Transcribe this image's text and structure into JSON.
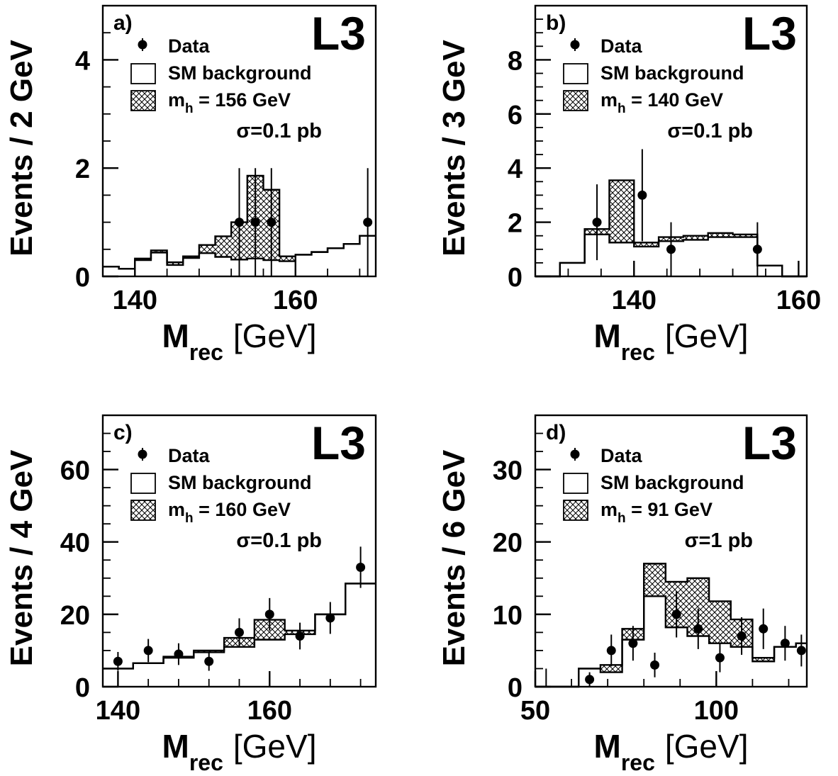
{
  "chart_data": [
    {
      "type": "histogram",
      "panel": "a)",
      "experiment": "L3",
      "ylabel": "Events / 2 GeV",
      "xlabel_main": "M",
      "xlabel_sub": "rec",
      "xlabel_unit": "[GeV]",
      "xlim": [
        136,
        170
      ],
      "ylim": [
        0,
        5
      ],
      "xticks": [
        140,
        160
      ],
      "yticks": [
        0,
        2,
        4
      ],
      "legend": {
        "data": "Data",
        "background": "SM background",
        "signal_prefix": "m",
        "signal_sub": "h",
        "signal_suffix": " = 156 GeV",
        "cross_section": "σ=0.1 pb"
      },
      "bin_edges": [
        136,
        138,
        140,
        142,
        144,
        146,
        148,
        150,
        152,
        154,
        156,
        158,
        160,
        162,
        164,
        166,
        168,
        170
      ],
      "background": [
        0.18,
        0.14,
        0.3,
        0.44,
        0.21,
        0.34,
        0.43,
        0.36,
        0.31,
        0.33,
        0.3,
        0.28,
        0.4,
        0.45,
        0.52,
        0.6,
        0.75
      ],
      "signal_total": [
        0.18,
        0.14,
        0.33,
        0.48,
        0.26,
        0.37,
        0.58,
        0.74,
        1.0,
        1.86,
        1.6,
        0.37,
        0.4,
        0.45,
        0.52,
        0.6,
        0.75
      ],
      "data_points": [
        {
          "x": 153,
          "y": 1,
          "err_low": 1,
          "err_high": 1
        },
        {
          "x": 155,
          "y": 1,
          "err_low": 1,
          "err_high": 1
        },
        {
          "x": 157,
          "y": 1,
          "err_low": 1,
          "err_high": 1
        },
        {
          "x": 169,
          "y": 1,
          "err_low": 1,
          "err_high": 1
        }
      ]
    },
    {
      "type": "histogram",
      "panel": "b)",
      "experiment": "L3",
      "ylabel": "Events / 3 GeV",
      "xlabel_main": "M",
      "xlabel_sub": "rec",
      "xlabel_unit": "[GeV]",
      "xlim": [
        128,
        161
      ],
      "ylim": [
        0,
        10
      ],
      "xticks": [
        140,
        160
      ],
      "yticks": [
        0,
        2,
        4,
        6,
        8
      ],
      "legend": {
        "data": "Data",
        "background": "SM background",
        "signal_prefix": "m",
        "signal_sub": "h",
        "signal_suffix": " = 140 GeV",
        "cross_section": "σ=0.1 pb"
      },
      "bin_edges": [
        128,
        131,
        134,
        137,
        140,
        143,
        146,
        149,
        152,
        155,
        158,
        161
      ],
      "background": [
        0,
        0.5,
        1.55,
        1.25,
        1.1,
        1.3,
        1.35,
        1.45,
        1.45,
        0.4,
        0
      ],
      "signal_total": [
        0,
        0.5,
        1.75,
        3.55,
        1.25,
        1.45,
        1.5,
        1.6,
        1.55,
        0.4,
        0
      ],
      "data_points": [
        {
          "x": 135.5,
          "y": 2,
          "err_low": 1.4,
          "err_high": 1.4
        },
        {
          "x": 141,
          "y": 3,
          "err_low": 1.7,
          "err_high": 1.7
        },
        {
          "x": 144.5,
          "y": 1,
          "err_low": 1,
          "err_high": 1
        },
        {
          "x": 155,
          "y": 1,
          "err_low": 1,
          "err_high": 1
        }
      ]
    },
    {
      "type": "histogram",
      "panel": "c)",
      "experiment": "L3",
      "ylabel": "Events / 4 GeV",
      "xlabel_main": "M",
      "xlabel_sub": "rec",
      "xlabel_unit": "[GeV]",
      "xlim": [
        138,
        174
      ],
      "ylim": [
        0,
        75
      ],
      "xticks": [
        140,
        160
      ],
      "yticks": [
        0,
        20,
        40,
        60
      ],
      "legend": {
        "data": "Data",
        "background": "SM background",
        "signal_prefix": "m",
        "signal_sub": "h",
        "signal_suffix": " = 160 GeV",
        "cross_section": "σ=0.1 pb"
      },
      "bin_edges": [
        138,
        142,
        146,
        150,
        154,
        158,
        162,
        166,
        170,
        174
      ],
      "background": [
        5,
        6.5,
        8,
        9.5,
        11,
        13,
        14.5,
        20,
        28.5
      ],
      "signal_total": [
        5,
        6.5,
        8.3,
        10,
        13.5,
        18.5,
        15.5,
        20,
        28.5
      ],
      "data_points": [
        {
          "x": 140,
          "y": 7,
          "err_low": 2.6,
          "err_high": 2.6
        },
        {
          "x": 144,
          "y": 10,
          "err_low": 3.2,
          "err_high": 3.2
        },
        {
          "x": 148,
          "y": 9,
          "err_low": 3,
          "err_high": 3
        },
        {
          "x": 152,
          "y": 7,
          "err_low": 2.6,
          "err_high": 2.6
        },
        {
          "x": 156,
          "y": 15,
          "err_low": 3.9,
          "err_high": 3.9
        },
        {
          "x": 160,
          "y": 20,
          "err_low": 4.5,
          "err_high": 4.5
        },
        {
          "x": 164,
          "y": 14,
          "err_low": 3.7,
          "err_high": 3.7
        },
        {
          "x": 168,
          "y": 19,
          "err_low": 4.4,
          "err_high": 4.4
        },
        {
          "x": 172,
          "y": 33,
          "err_low": 5.7,
          "err_high": 5.7
        }
      ]
    },
    {
      "type": "histogram",
      "panel": "d)",
      "experiment": "L3",
      "ylabel": "Events / 6 GeV",
      "xlabel_main": "M",
      "xlabel_sub": "rec",
      "xlabel_unit": "[GeV]",
      "xlim": [
        50,
        125
      ],
      "ylim": [
        0,
        37.5
      ],
      "xticks": [
        50,
        100
      ],
      "yticks": [
        0,
        10,
        20,
        30
      ],
      "legend": {
        "data": "Data",
        "background": "SM background",
        "signal_prefix": "m",
        "signal_sub": "h",
        "signal_suffix": " = 91 GeV",
        "cross_section": "σ=1 pb"
      },
      "bin_edges": [
        50,
        55,
        62,
        68,
        74,
        80,
        86,
        92,
        98,
        104,
        110,
        116,
        122,
        125
      ],
      "background": [
        0,
        0,
        2.5,
        2,
        6.5,
        12.5,
        8.2,
        7,
        6,
        5.5,
        3.5,
        5.5,
        6
      ],
      "signal_total": [
        0,
        0,
        2.5,
        3,
        8,
        17,
        14.5,
        15,
        11.8,
        9.3,
        4,
        5.5,
        6
      ],
      "data_points": [
        {
          "x": 53,
          "y": 0,
          "err_low": 0,
          "err_high": 2.5
        },
        {
          "x": 65,
          "y": 1,
          "err_low": 1,
          "err_high": 1
        },
        {
          "x": 71,
          "y": 5,
          "err_low": 2.2,
          "err_high": 2.2
        },
        {
          "x": 77,
          "y": 6,
          "err_low": 2.4,
          "err_high": 2.4
        },
        {
          "x": 83,
          "y": 3,
          "err_low": 1.7,
          "err_high": 1.7
        },
        {
          "x": 89,
          "y": 10,
          "err_low": 3.2,
          "err_high": 3.2
        },
        {
          "x": 95,
          "y": 8,
          "err_low": 2.8,
          "err_high": 2.8
        },
        {
          "x": 101,
          "y": 4,
          "err_low": 2,
          "err_high": 2
        },
        {
          "x": 107,
          "y": 7,
          "err_low": 2.6,
          "err_high": 2.6
        },
        {
          "x": 113,
          "y": 8,
          "err_low": 2.8,
          "err_high": 2.8
        },
        {
          "x": 119,
          "y": 6,
          "err_low": 2.4,
          "err_high": 2.4
        },
        {
          "x": 123.5,
          "y": 5,
          "err_low": 2.2,
          "err_high": 2.2
        }
      ]
    }
  ]
}
